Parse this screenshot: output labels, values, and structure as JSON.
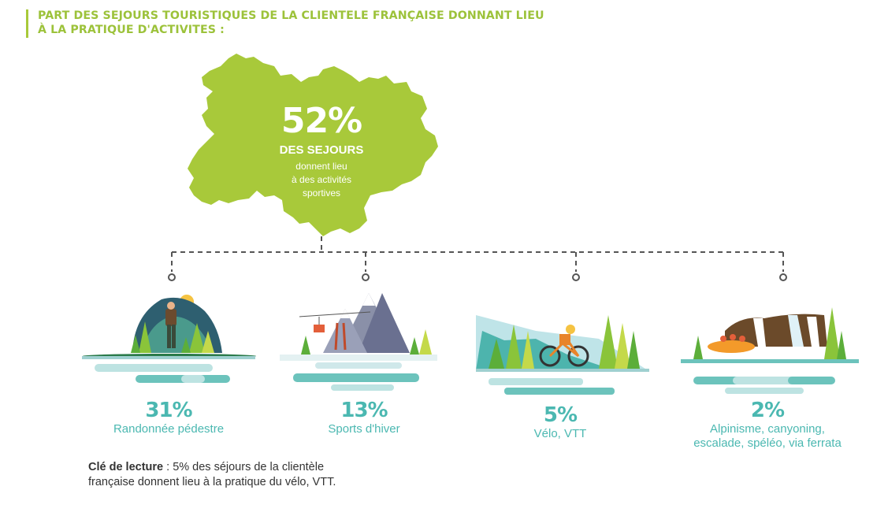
{
  "title": {
    "line1": "PART DES SEJOURS TOURISTIQUES DE LA CLIENTELE FRANÇAISE DONNANT LIEU",
    "line2": "À LA PRATIQUE D'ACTIVITES :"
  },
  "map": {
    "percent": "52%",
    "heading": "DES SEJOURS",
    "lines": [
      "donnent lieu",
      "à des activités",
      "sportives"
    ]
  },
  "activities": [
    {
      "percent": "31%",
      "label": "Randonnée pédestre",
      "value": 31
    },
    {
      "percent": "13%",
      "label": "Sports d'hiver",
      "value": 13
    },
    {
      "percent": "5%",
      "label": "Vélo, VTT",
      "value": 5
    },
    {
      "percent": "2%",
      "label_lines": [
        "Alpinisme, canyoning,",
        "escalade, spéléo, via ferrata"
      ],
      "value": 2
    }
  ],
  "reading_key": {
    "label": "Clé de lecture",
    "sep": " : ",
    "text1": "5% des séjours de la clientèle",
    "text2": "française donnent lieu à la pratique du vélo, VTT."
  },
  "colors": {
    "title_green": "#9cc23a",
    "map_green": "#a8c93a",
    "teal_text": "#4bb8b1",
    "dashed_line": "#555555"
  }
}
